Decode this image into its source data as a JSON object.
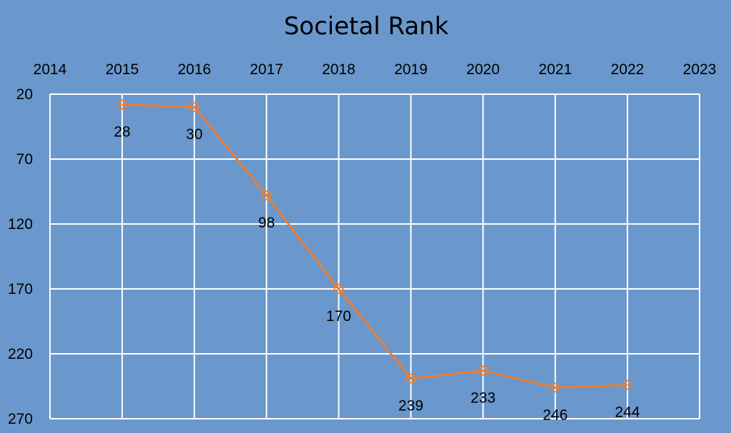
{
  "chart_data": {
    "type": "line",
    "title": "Societal Rank",
    "xlabel": "",
    "ylabel": "",
    "x_ticks": [
      "2014",
      "2015",
      "2016",
      "2017",
      "2018",
      "2019",
      "2020",
      "2021",
      "2022",
      "2023"
    ],
    "xlim": [
      2014,
      2023
    ],
    "y_ticks": [
      "20",
      "70",
      "120",
      "170",
      "220",
      "270"
    ],
    "ylim": [
      20,
      270
    ],
    "y_reversed": true,
    "grid": true,
    "series": [
      {
        "x": [
          2015,
          2016,
          2017,
          2018,
          2019,
          2020,
          2021,
          2022
        ],
        "values": [
          28,
          30,
          98,
          170,
          239,
          233,
          246,
          244
        ],
        "labels": [
          "28",
          "30",
          "98",
          "170",
          "239",
          "233",
          "246",
          "244"
        ],
        "color": "#ed7d31"
      }
    ],
    "colors": {
      "background": "#6a98cd",
      "grid": "#ffffff",
      "line": "#ed7d31"
    }
  }
}
